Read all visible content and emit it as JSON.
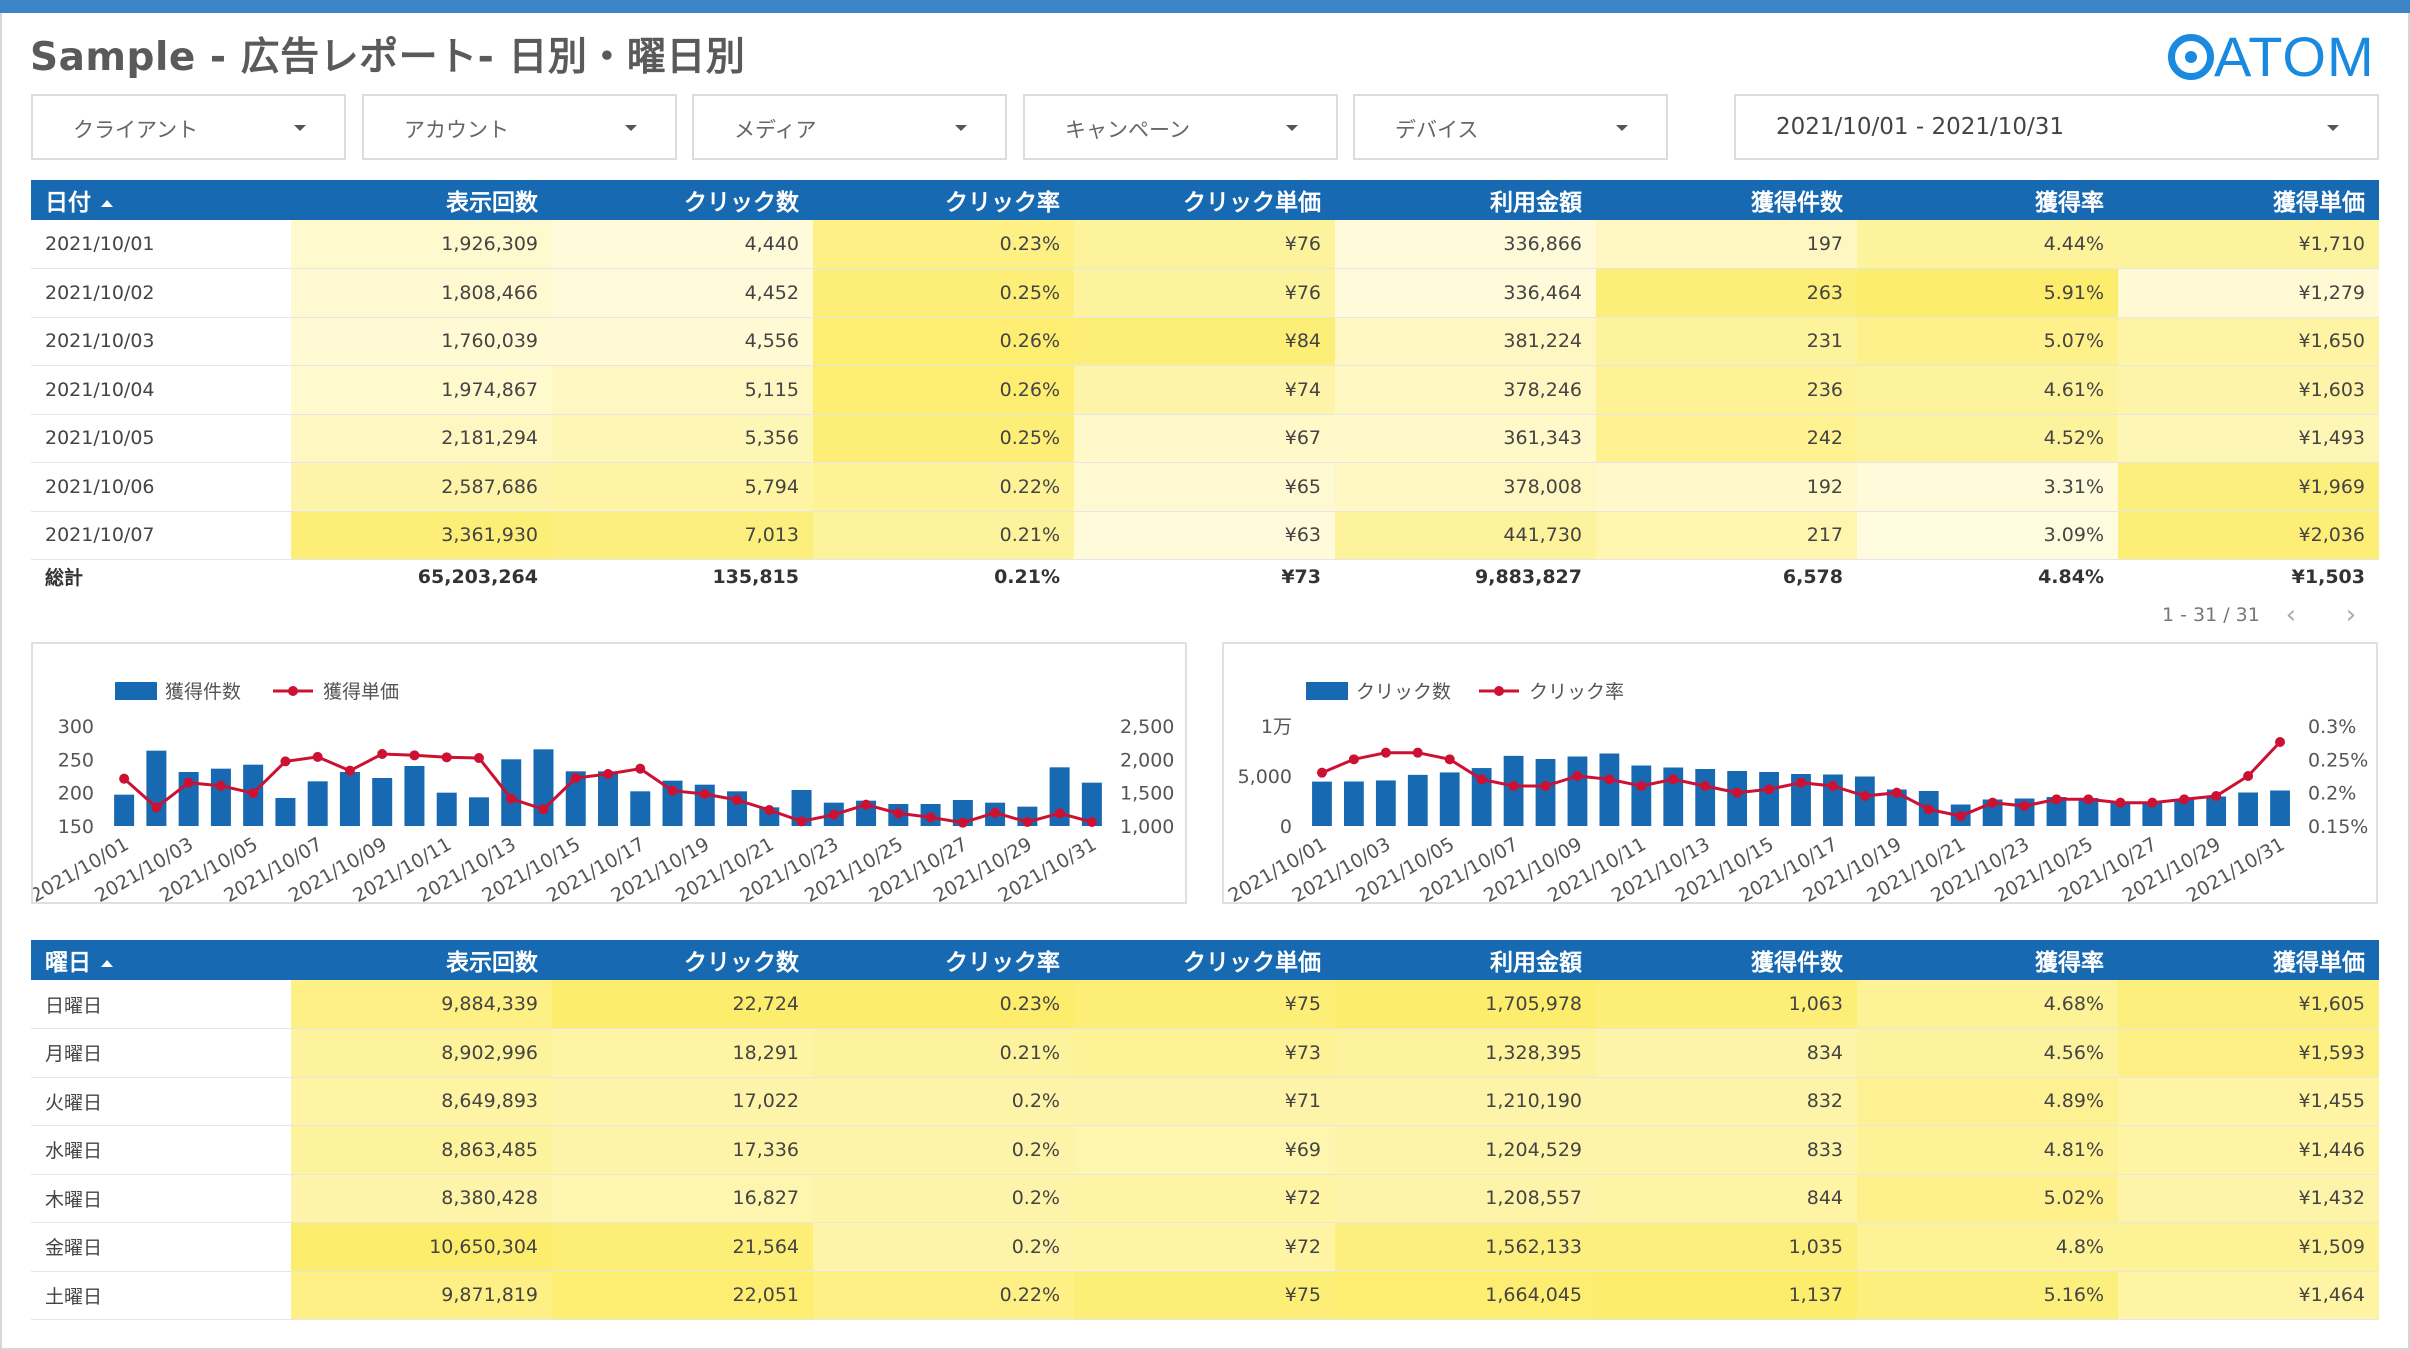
{
  "header": {
    "title": "Sample - 広告レポート- 日別・曜日別",
    "logo_text": "ATOM"
  },
  "filters": [
    {
      "label": "クライアント"
    },
    {
      "label": "アカウント"
    },
    {
      "label": "メディア"
    },
    {
      "label": "キャンペーン"
    },
    {
      "label": "デバイス"
    }
  ],
  "date_range": {
    "label": "2021/10/01 - 2021/10/31"
  },
  "columns": [
    "表示回数",
    "クリック数",
    "クリック率",
    "クリック単価",
    "利用金額",
    "獲得件数",
    "獲得率",
    "獲得単価"
  ],
  "daily_table": {
    "first_header": "日付",
    "rows": [
      {
        "label": "2021/10/01",
        "cells": [
          "1,926,309",
          "4,440",
          "0.23%",
          "¥76",
          "336,866",
          "197",
          "4.44%",
          "¥1,710"
        ],
        "shade": [
          0.15,
          0.05,
          0.75,
          0.55,
          0.05,
          0.25,
          0.55,
          0.55
        ]
      },
      {
        "label": "2021/10/02",
        "cells": [
          "1,808,466",
          "4,452",
          "0.25%",
          "¥76",
          "336,464",
          "263",
          "5.91%",
          "¥1,279"
        ],
        "shade": [
          0.12,
          0.05,
          0.85,
          0.55,
          0.05,
          0.85,
          0.95,
          0.1
        ]
      },
      {
        "label": "2021/10/03",
        "cells": [
          "1,760,039",
          "4,556",
          "0.26%",
          "¥84",
          "381,224",
          "231",
          "5.07%",
          "¥1,650"
        ],
        "shade": [
          0.1,
          0.1,
          0.9,
          0.85,
          0.25,
          0.55,
          0.7,
          0.5
        ]
      },
      {
        "label": "2021/10/04",
        "cells": [
          "1,974,867",
          "5,115",
          "0.26%",
          "¥74",
          "378,246",
          "236",
          "4.61%",
          "¥1,603"
        ],
        "shade": [
          0.15,
          0.25,
          0.9,
          0.45,
          0.25,
          0.6,
          0.55,
          0.45
        ]
      },
      {
        "label": "2021/10/05",
        "cells": [
          "2,181,294",
          "5,356",
          "0.25%",
          "¥67",
          "361,343",
          "242",
          "4.52%",
          "¥1,493"
        ],
        "shade": [
          0.25,
          0.35,
          0.85,
          0.2,
          0.2,
          0.65,
          0.55,
          0.35
        ]
      },
      {
        "label": "2021/10/06",
        "cells": [
          "2,587,686",
          "5,794",
          "0.22%",
          "¥65",
          "378,008",
          "192",
          "3.31%",
          "¥1,969"
        ],
        "shade": [
          0.45,
          0.5,
          0.6,
          0.12,
          0.25,
          0.2,
          0.05,
          0.8
        ]
      },
      {
        "label": "2021/10/07",
        "cells": [
          "3,361,930",
          "7,013",
          "0.21%",
          "¥63",
          "441,730",
          "217",
          "3.09%",
          "¥2,036"
        ],
        "shade": [
          0.85,
          0.8,
          0.55,
          0.05,
          0.55,
          0.4,
          0.02,
          0.85
        ]
      }
    ],
    "total": {
      "label": "総計",
      "cells": [
        "65,203,264",
        "135,815",
        "0.21%",
        "¥73",
        "9,883,827",
        "6,578",
        "4.84%",
        "¥1,503"
      ]
    },
    "pager": "1 - 31 / 31"
  },
  "chart_data": [
    {
      "type": "bar",
      "combo": "bar-line",
      "categories": [
        "2021/10/01",
        "2021/10/02",
        "2021/10/03",
        "2021/10/04",
        "2021/10/05",
        "2021/10/06",
        "2021/10/07",
        "2021/10/08",
        "2021/10/09",
        "2021/10/10",
        "2021/10/11",
        "2021/10/12",
        "2021/10/13",
        "2021/10/14",
        "2021/10/15",
        "2021/10/16",
        "2021/10/17",
        "2021/10/18",
        "2021/10/19",
        "2021/10/20",
        "2021/10/21",
        "2021/10/22",
        "2021/10/23",
        "2021/10/24",
        "2021/10/25",
        "2021/10/26",
        "2021/10/27",
        "2021/10/28",
        "2021/10/29",
        "2021/10/30",
        "2021/10/31"
      ],
      "tick_labels": [
        "2021/10/01",
        "2021/10/03",
        "2021/10/05",
        "2021/10/07",
        "2021/10/09",
        "2021/10/11",
        "2021/10/13",
        "2021/10/15",
        "2021/10/17",
        "2021/10/19",
        "2021/10/21",
        "2021/10/23",
        "2021/10/25",
        "2021/10/27",
        "2021/10/29",
        "2021/10/31"
      ],
      "series": [
        {
          "name": "獲得件数",
          "kind": "bar",
          "axis": "left",
          "color": "#1769b1",
          "values": [
            197,
            263,
            231,
            236,
            242,
            192,
            217,
            231,
            222,
            240,
            200,
            193,
            250,
            265,
            232,
            232,
            202,
            218,
            212,
            202,
            178,
            204,
            185,
            188,
            183,
            183,
            189,
            185,
            179,
            238,
            215
          ]
        },
        {
          "name": "獲得単価",
          "kind": "line",
          "axis": "right",
          "color": "#cc1133",
          "values": [
            1710,
            1279,
            1650,
            1603,
            1493,
            1969,
            2036,
            1830,
            2080,
            2060,
            2030,
            2020,
            1410,
            1250,
            1720,
            1780,
            1860,
            1530,
            1480,
            1390,
            1240,
            1070,
            1170,
            1320,
            1190,
            1130,
            1050,
            1200,
            1060,
            1190,
            1060
          ]
        }
      ],
      "yleft": {
        "min": 150,
        "max": 300,
        "ticks": [
          "300",
          "250",
          "200",
          "150"
        ]
      },
      "yright": {
        "min": 1000,
        "max": 2500,
        "ticks": [
          "2,500",
          "2,000",
          "1,500",
          "1,000"
        ]
      },
      "legend": "top-left"
    },
    {
      "type": "bar",
      "combo": "bar-line",
      "categories": [
        "2021/10/01",
        "2021/10/02",
        "2021/10/03",
        "2021/10/04",
        "2021/10/05",
        "2021/10/06",
        "2021/10/07",
        "2021/10/08",
        "2021/10/09",
        "2021/10/10",
        "2021/10/11",
        "2021/10/12",
        "2021/10/13",
        "2021/10/14",
        "2021/10/15",
        "2021/10/16",
        "2021/10/17",
        "2021/10/18",
        "2021/10/19",
        "2021/10/20",
        "2021/10/21",
        "2021/10/22",
        "2021/10/23",
        "2021/10/24",
        "2021/10/25",
        "2021/10/26",
        "2021/10/27",
        "2021/10/28",
        "2021/10/29",
        "2021/10/30",
        "2021/10/31"
      ],
      "tick_labels": [
        "2021/10/01",
        "2021/10/03",
        "2021/10/05",
        "2021/10/07",
        "2021/10/09",
        "2021/10/11",
        "2021/10/13",
        "2021/10/15",
        "2021/10/17",
        "2021/10/19",
        "2021/10/21",
        "2021/10/23",
        "2021/10/25",
        "2021/10/27",
        "2021/10/29",
        "2021/10/31"
      ],
      "series": [
        {
          "name": "クリック数",
          "kind": "bar",
          "axis": "left",
          "color": "#1769b1",
          "values": [
            4440,
            4452,
            4556,
            5115,
            5356,
            5794,
            7013,
            6700,
            6950,
            7250,
            6050,
            5850,
            5700,
            5500,
            5400,
            5200,
            5150,
            4950,
            3650,
            3500,
            2150,
            2650,
            2750,
            2900,
            2800,
            2300,
            2350,
            2650,
            2950,
            3350,
            3550
          ]
        },
        {
          "name": "クリック率",
          "kind": "line",
          "axis": "right",
          "color": "#cc1133",
          "values": [
            0.23,
            0.25,
            0.26,
            0.26,
            0.25,
            0.22,
            0.21,
            0.21,
            0.225,
            0.22,
            0.21,
            0.22,
            0.21,
            0.2,
            0.205,
            0.215,
            0.21,
            0.195,
            0.2,
            0.175,
            0.165,
            0.185,
            0.18,
            0.19,
            0.19,
            0.185,
            0.185,
            0.19,
            0.195,
            0.225,
            0.276
          ]
        }
      ],
      "yleft": {
        "min": 0,
        "max": 10000,
        "ticks": [
          "1万",
          "5,000",
          "0"
        ]
      },
      "yright": {
        "min": 0.15,
        "max": 0.3,
        "ticks": [
          "0.3%",
          "0.25%",
          "0.2%",
          "0.15%"
        ]
      },
      "legend": "top-left"
    }
  ],
  "weekday_table": {
    "first_header": "曜日",
    "rows": [
      {
        "label": "日曜日",
        "cells": [
          "9,884,339",
          "22,724",
          "0.23%",
          "¥75",
          "1,705,978",
          "1,063",
          "4.68%",
          "¥1,605"
        ],
        "shade": [
          0.75,
          0.95,
          0.95,
          0.85,
          0.95,
          0.85,
          0.6,
          0.8
        ]
      },
      {
        "label": "月曜日",
        "cells": [
          "8,902,996",
          "18,291",
          "0.21%",
          "¥73",
          "1,328,395",
          "834",
          "4.56%",
          "¥1,593"
        ],
        "shade": [
          0.55,
          0.5,
          0.55,
          0.6,
          0.55,
          0.45,
          0.55,
          0.75
        ]
      },
      {
        "label": "火曜日",
        "cells": [
          "8,649,893",
          "17,022",
          "0.2%",
          "¥71",
          "1,210,190",
          "832",
          "4.89%",
          "¥1,455"
        ],
        "shade": [
          0.5,
          0.45,
          0.45,
          0.45,
          0.45,
          0.45,
          0.65,
          0.5
        ]
      },
      {
        "label": "水曜日",
        "cells": [
          "8,863,485",
          "17,336",
          "0.2%",
          "¥69",
          "1,204,529",
          "833",
          "4.81%",
          "¥1,446"
        ],
        "shade": [
          0.55,
          0.45,
          0.45,
          0.4,
          0.45,
          0.45,
          0.6,
          0.5
        ]
      },
      {
        "label": "木曜日",
        "cells": [
          "8,380,428",
          "16,827",
          "0.2%",
          "¥72",
          "1,208,557",
          "844",
          "5.02%",
          "¥1,432"
        ],
        "shade": [
          0.45,
          0.4,
          0.45,
          0.5,
          0.45,
          0.5,
          0.7,
          0.45
        ]
      },
      {
        "label": "金曜日",
        "cells": [
          "10,650,304",
          "21,564",
          "0.2%",
          "¥72",
          "1,562,133",
          "1,035",
          "4.8%",
          "¥1,509"
        ],
        "shade": [
          0.95,
          0.85,
          0.45,
          0.5,
          0.8,
          0.8,
          0.6,
          0.6
        ]
      },
      {
        "label": "土曜日",
        "cells": [
          "9,871,819",
          "22,051",
          "0.22%",
          "¥75",
          "1,664,045",
          "1,137",
          "5.16%",
          "¥1,464"
        ],
        "shade": [
          0.75,
          0.9,
          0.75,
          0.85,
          0.9,
          0.95,
          0.8,
          0.5
        ]
      }
    ]
  },
  "colors": {
    "header_bg": "#1769b1",
    "bar": "#1769b1",
    "line": "#cc1133",
    "heat_low": "#fffbe0",
    "heat_high": "#fdec66",
    "accent_top": "#3d85c6",
    "logo": "#1a8ae0"
  }
}
